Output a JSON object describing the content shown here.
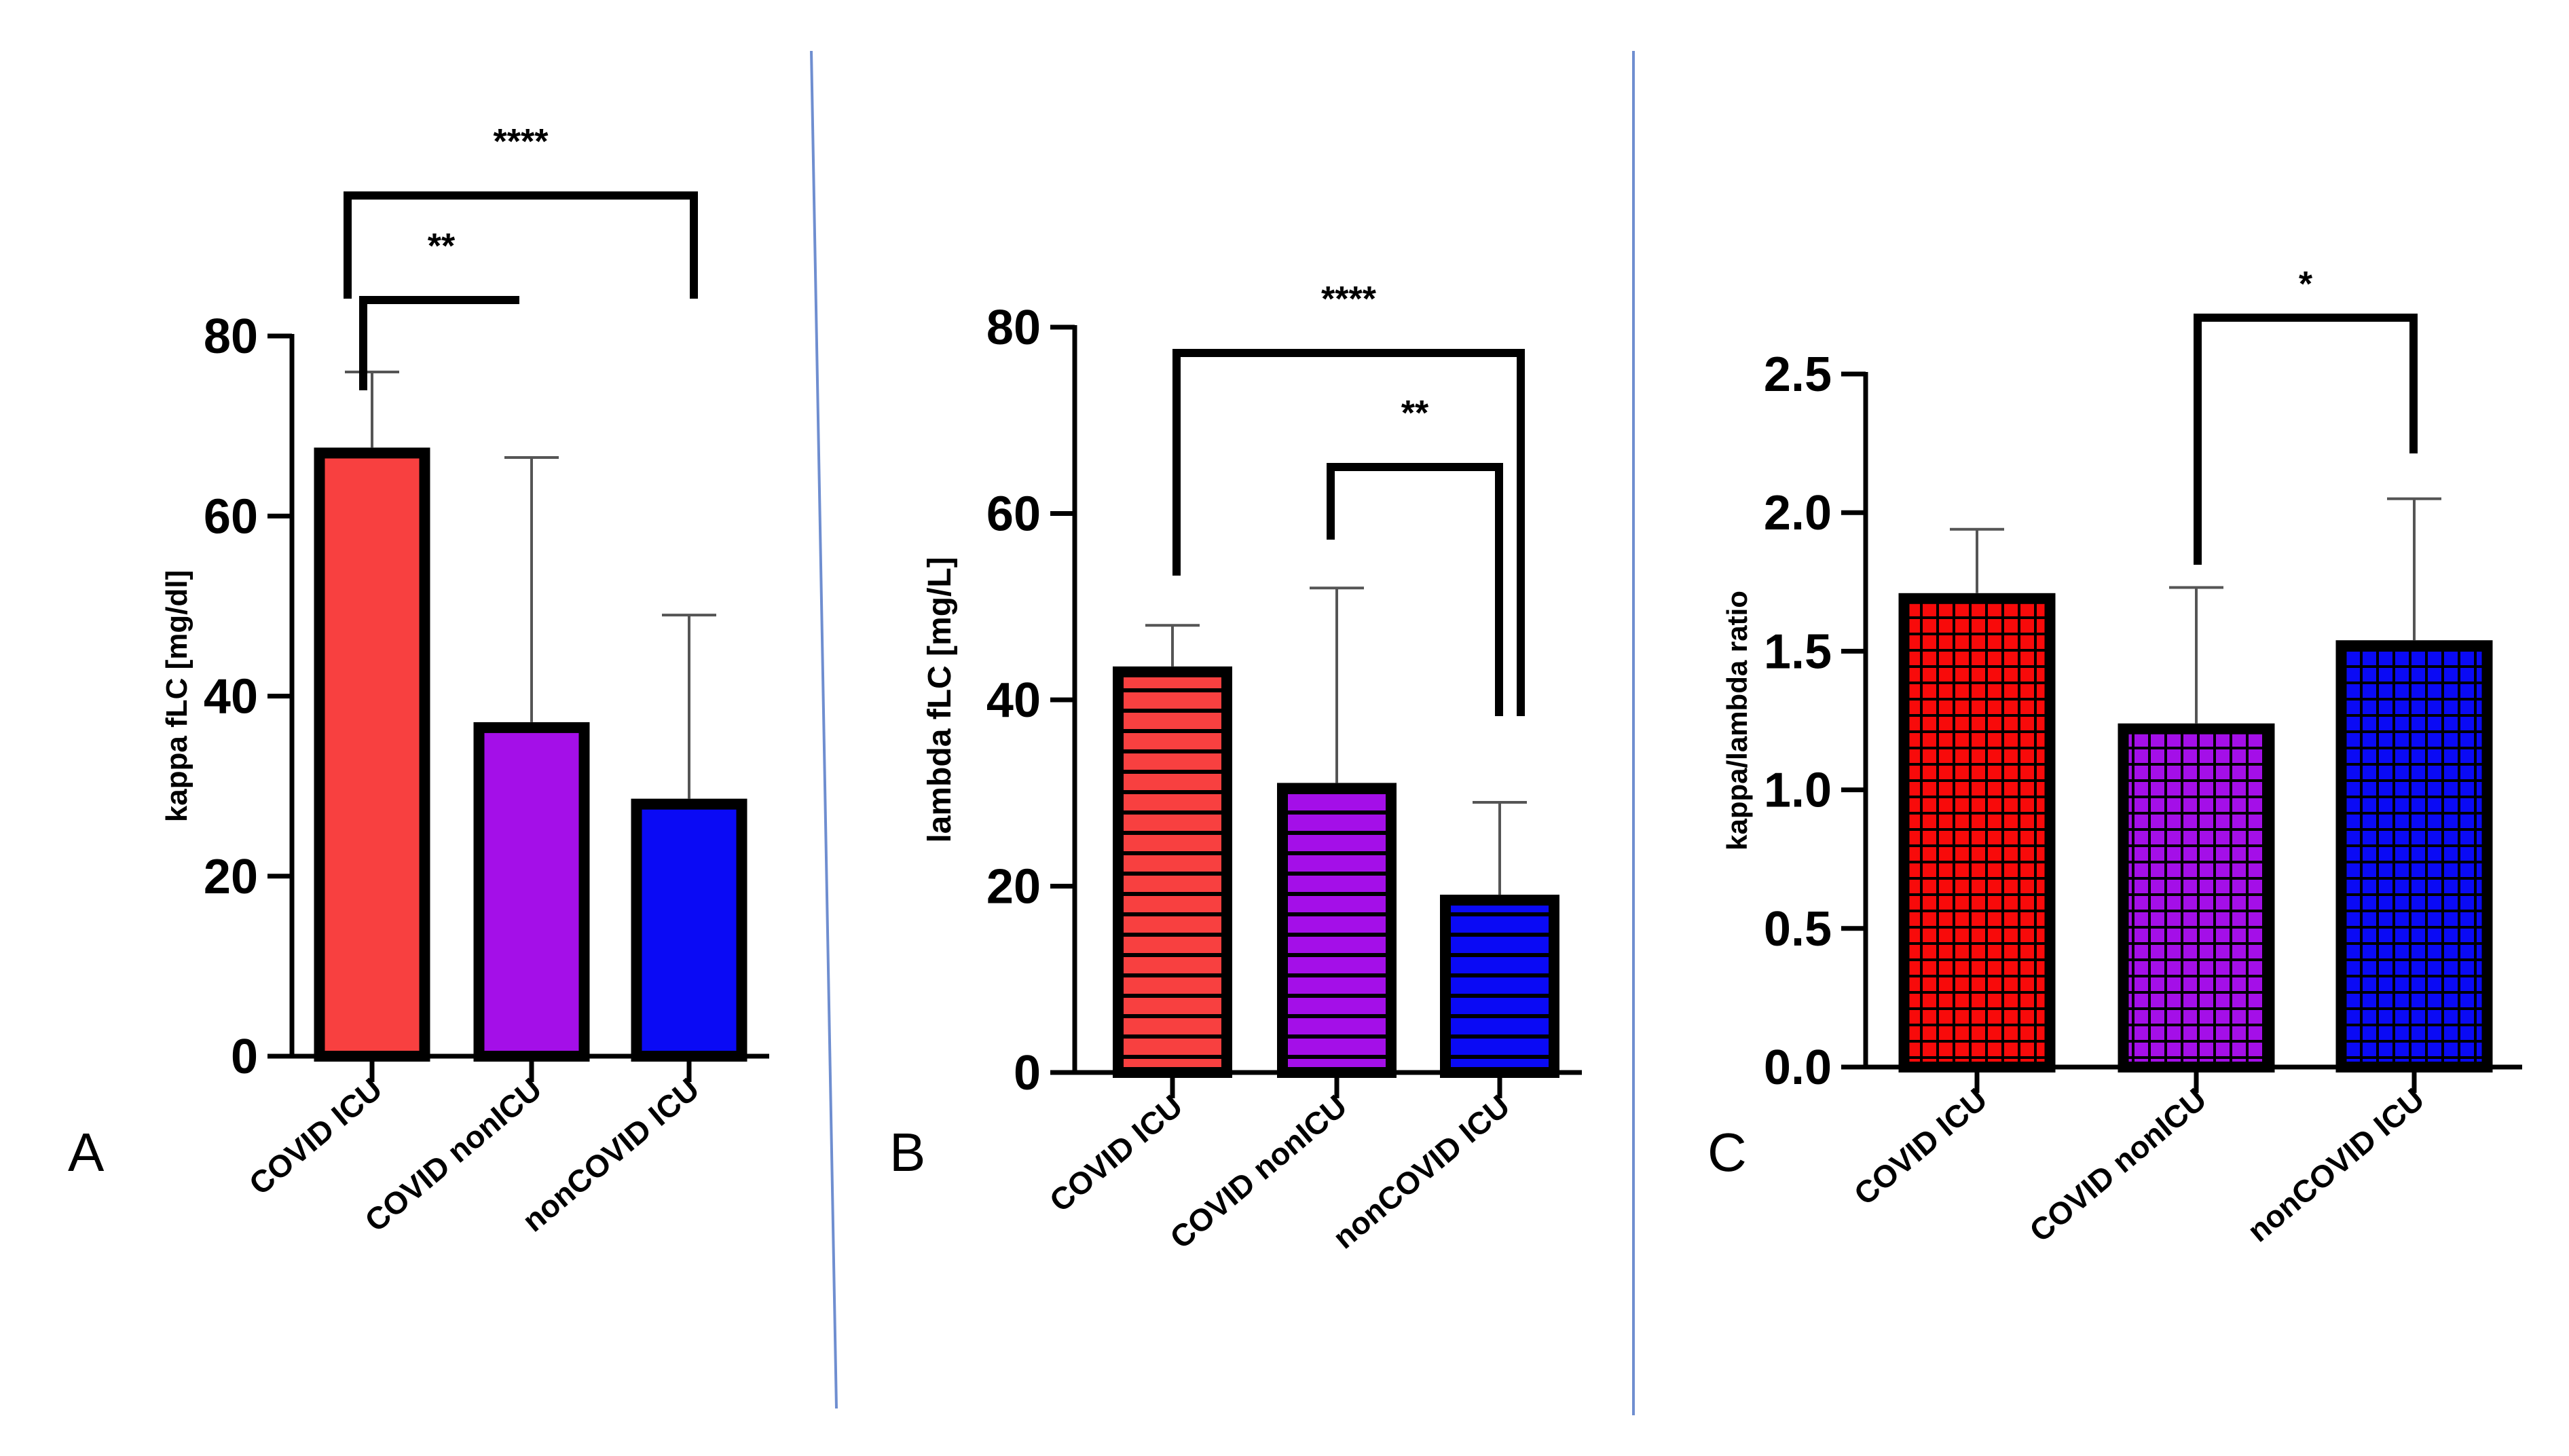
{
  "chart_data": [
    {
      "type": "bar",
      "panel_label": "A",
      "categories": [
        "COVID ICU",
        "COVID nonICU",
        "nonCOVID ICU"
      ],
      "values": [
        67,
        36.5,
        28
      ],
      "errors": [
        9,
        30,
        21
      ],
      "ylabel": "kappa fLC [mg/dl]",
      "ylim": [
        0,
        80
      ],
      "yticks": [
        "0",
        "20",
        "40",
        "60",
        "80"
      ],
      "colors": [
        "#f84040",
        "#a40fe8",
        "#0a0af5"
      ],
      "pattern": "solid",
      "significance": [
        {
          "from": 0,
          "to": 1,
          "label": "**"
        },
        {
          "from": 0,
          "to": 2,
          "label": "****"
        }
      ]
    },
    {
      "type": "bar",
      "panel_label": "B",
      "categories": [
        "COVID ICU",
        "COVID nonICU",
        "nonCOVID ICU"
      ],
      "values": [
        43,
        30.5,
        18.5
      ],
      "errors": [
        5,
        21.5,
        10.5
      ],
      "ylabel": "lambda fLC [mg/L]",
      "ylim": [
        0,
        80
      ],
      "yticks": [
        "0",
        "20",
        "40",
        "60",
        "80"
      ],
      "colors": [
        "#f84040",
        "#a40fe8",
        "#0a0af5"
      ],
      "pattern": "horizontal-stripes",
      "significance": [
        {
          "from": 1,
          "to": 2,
          "label": "**"
        },
        {
          "from": 0,
          "to": 2,
          "label": "****"
        }
      ]
    },
    {
      "type": "bar",
      "panel_label": "C",
      "categories": [
        "COVID ICU",
        "COVID nonICU",
        "nonCOVID ICU"
      ],
      "values": [
        1.69,
        1.22,
        1.52
      ],
      "errors": [
        0.25,
        0.51,
        0.53
      ],
      "ylabel": "kappa/lambda ratio",
      "ylim": [
        0,
        2.5
      ],
      "yticks": [
        "0.0",
        "0.5",
        "1.0",
        "1.5",
        "2.0",
        "2.5"
      ],
      "colors": [
        "#f80a0a",
        "#a40fe8",
        "#0a0af5"
      ],
      "pattern": "grid",
      "significance": [
        {
          "from": 1,
          "to": 2,
          "label": "*"
        }
      ]
    }
  ]
}
